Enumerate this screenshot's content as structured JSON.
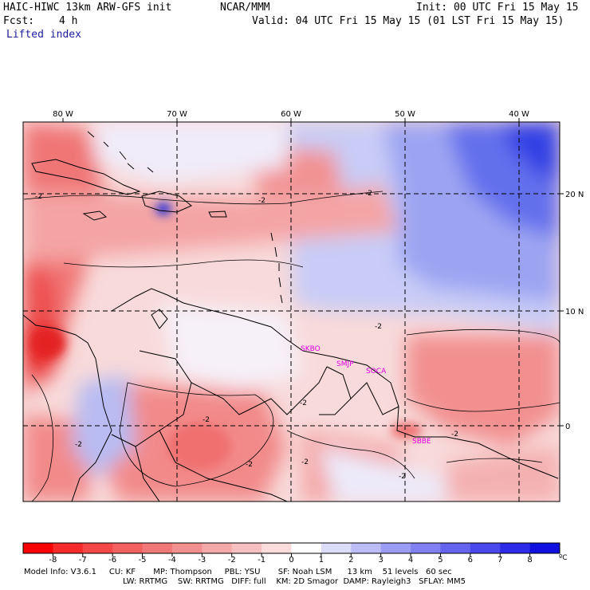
{
  "header": {
    "model_title": "HAIC-HIWC 13km ARW-GFS init",
    "org": "NCAR/MMM",
    "init": "Init: 00 UTC Fri 15 May 15",
    "fcst_label": "Fcst:",
    "fcst_value": "4 h",
    "valid": "Valid: 04 UTC Fri 15 May 15 (01 LST Fri 15 May 15)",
    "field": "Lifted index"
  },
  "map": {
    "lon_labels": [
      "80 W",
      "70 W",
      "60 W",
      "50 W",
      "40 W"
    ],
    "lat_labels": [
      "20 N",
      "10 N",
      "0"
    ],
    "contour_labels": [
      "-2",
      "-2",
      "-2",
      "-2",
      "-2",
      "-2",
      "-2",
      "-2",
      "-2",
      "-2",
      "-2"
    ],
    "stations": [
      "SKBO",
      "SMJP",
      "SOCA",
      "SBBE"
    ],
    "colors": {
      "station": "#e000e0",
      "strong_negative": "#e8202a",
      "weak_negative": "#f8c8c8",
      "neutral": "#ffffff",
      "positive": "#4a50f0"
    }
  },
  "colorbar": {
    "ticks": [
      "-8",
      "-7",
      "-6",
      "-5",
      "-4",
      "-3",
      "-2",
      "-1",
      "0",
      "1",
      "2",
      "3",
      "4",
      "5",
      "6",
      "7",
      "8"
    ],
    "unit": "ºC",
    "colors": [
      "#f80000",
      "#f62a2a",
      "#f44848",
      "#f26060",
      "#f07878",
      "#f29090",
      "#f4a8a8",
      "#f6c0c0",
      "#fadcdc",
      "#ffffff",
      "#dcdcf8",
      "#bcbcf6",
      "#9c9cf4",
      "#8080f0",
      "#6464ee",
      "#4848ec",
      "#2c2ce8",
      "#1010e0"
    ]
  },
  "footer": {
    "line1": "Model Info: V3.6.1     CU: KF       MP: Thompson     PBL: YSU       SF: Noah LSM      13 km    51 levels   60 sec",
    "line2": "LW: RRTMG    SW: RRTMG   DIFF: full    KM: 2D Smagor  DAMP: Rayleigh3   SFLAY: MM5"
  }
}
